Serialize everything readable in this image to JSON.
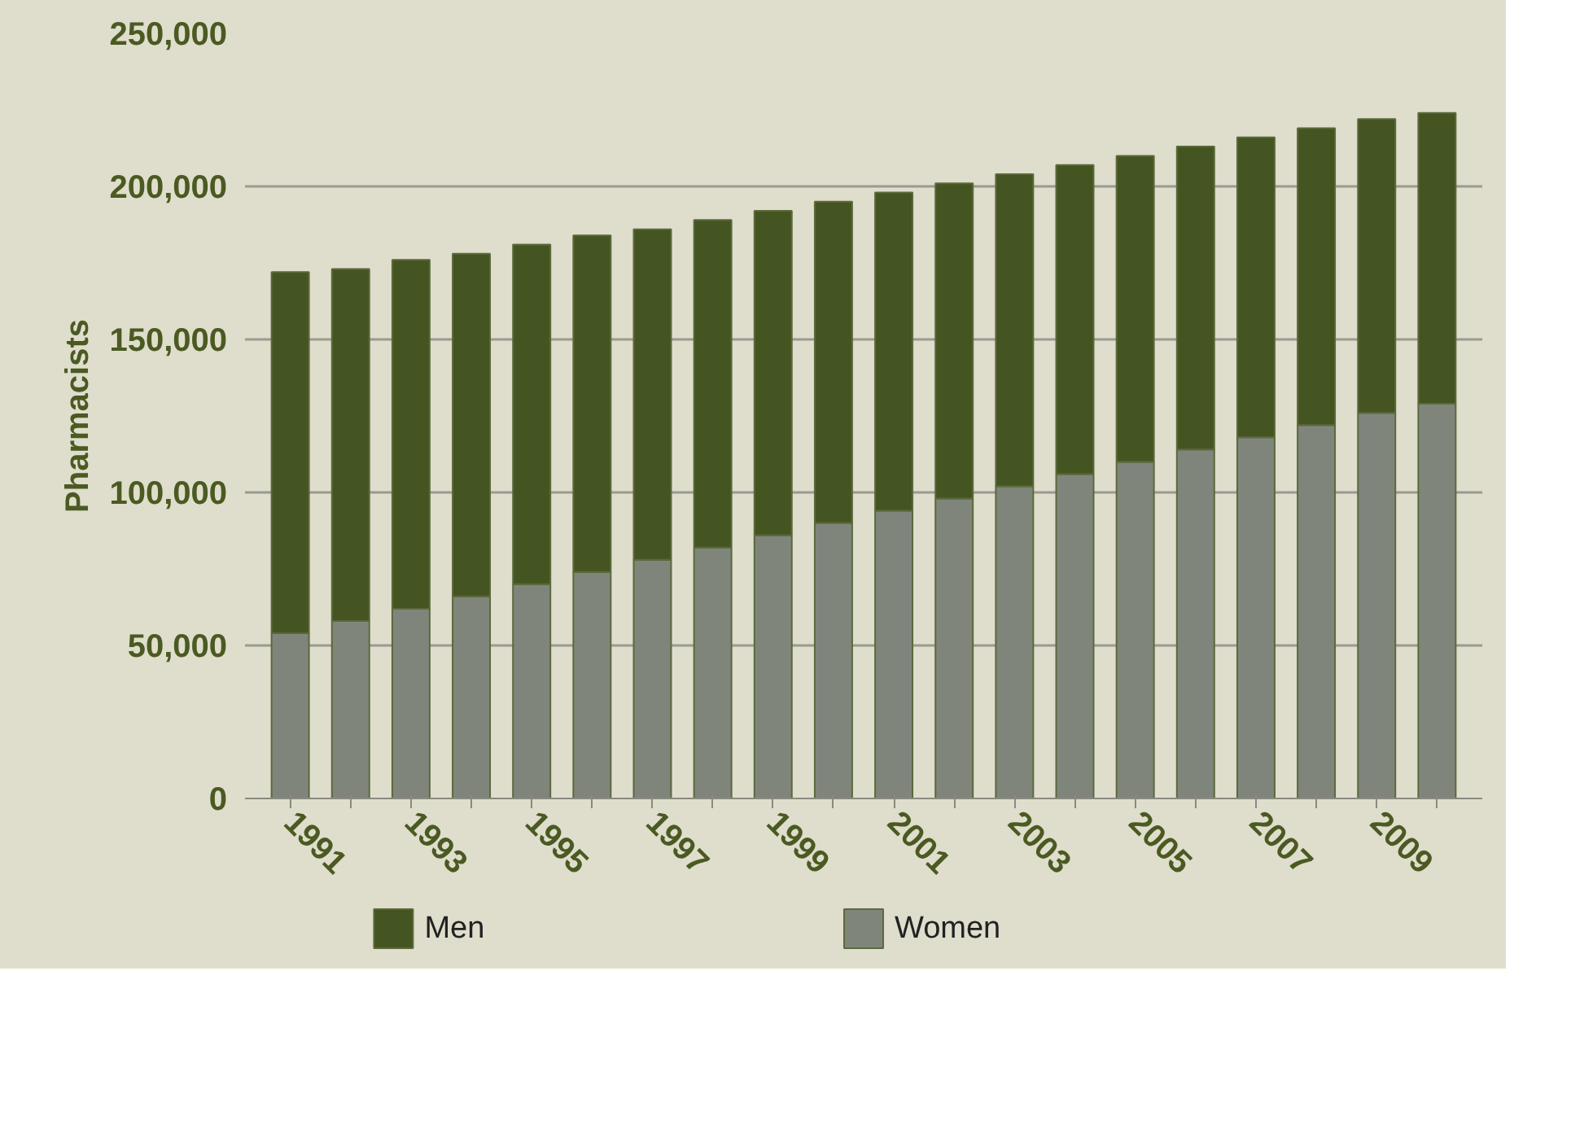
{
  "chart_data": {
    "type": "bar",
    "stacked": true,
    "ylabel": "Pharmacists",
    "categories": [
      "1991",
      null,
      "1993",
      null,
      "1995",
      null,
      "1997",
      null,
      "1999",
      null,
      "2001",
      null,
      "2003",
      null,
      "2005",
      null,
      "2007",
      null,
      "2009",
      null
    ],
    "series": [
      {
        "name": "Women",
        "color": "#80857c",
        "values": [
          54000,
          58000,
          62000,
          66000,
          70000,
          74000,
          78000,
          82000,
          86000,
          90000,
          94000,
          98000,
          102000,
          106000,
          110000,
          114000,
          118000,
          122000,
          126000,
          129000
        ]
      },
      {
        "name": "Men",
        "color": "#445522",
        "values": [
          118000,
          115000,
          114000,
          112000,
          111000,
          110000,
          108000,
          107000,
          106000,
          105000,
          104000,
          103000,
          102000,
          101000,
          100000,
          99000,
          98000,
          97000,
          96000,
          95000
        ]
      }
    ],
    "ylim": [
      0,
      250000
    ],
    "yticks": [
      {
        "value": 0,
        "label": "0"
      },
      {
        "value": 50000,
        "label": "50,000"
      },
      {
        "value": 100000,
        "label": "100,000"
      },
      {
        "value": 150000,
        "label": "150,000"
      },
      {
        "value": 200000,
        "label": "200,000"
      },
      {
        "value": 250000,
        "label": "250,000"
      }
    ],
    "grid": "y",
    "legend": "bottom"
  }
}
